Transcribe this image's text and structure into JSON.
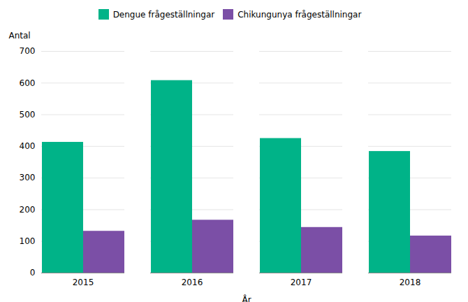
{
  "chart_data": {
    "type": "bar",
    "categories": [
      "2015",
      "2016",
      "2017",
      "2018"
    ],
    "series": [
      {
        "name": "Dengue frågeställningar",
        "color": "#00B388",
        "values": [
          413,
          608,
          425,
          384
        ]
      },
      {
        "name": "Chikungunya frågeställningar",
        "color": "#7B4FA6",
        "values": [
          132,
          167,
          144,
          117
        ]
      }
    ],
    "xlabel": "År",
    "ylabel": "Antal",
    "ylim": [
      0,
      700
    ],
    "yticks": [
      0,
      100,
      200,
      300,
      400,
      500,
      600,
      700
    ],
    "grid": true,
    "legend": "top"
  }
}
